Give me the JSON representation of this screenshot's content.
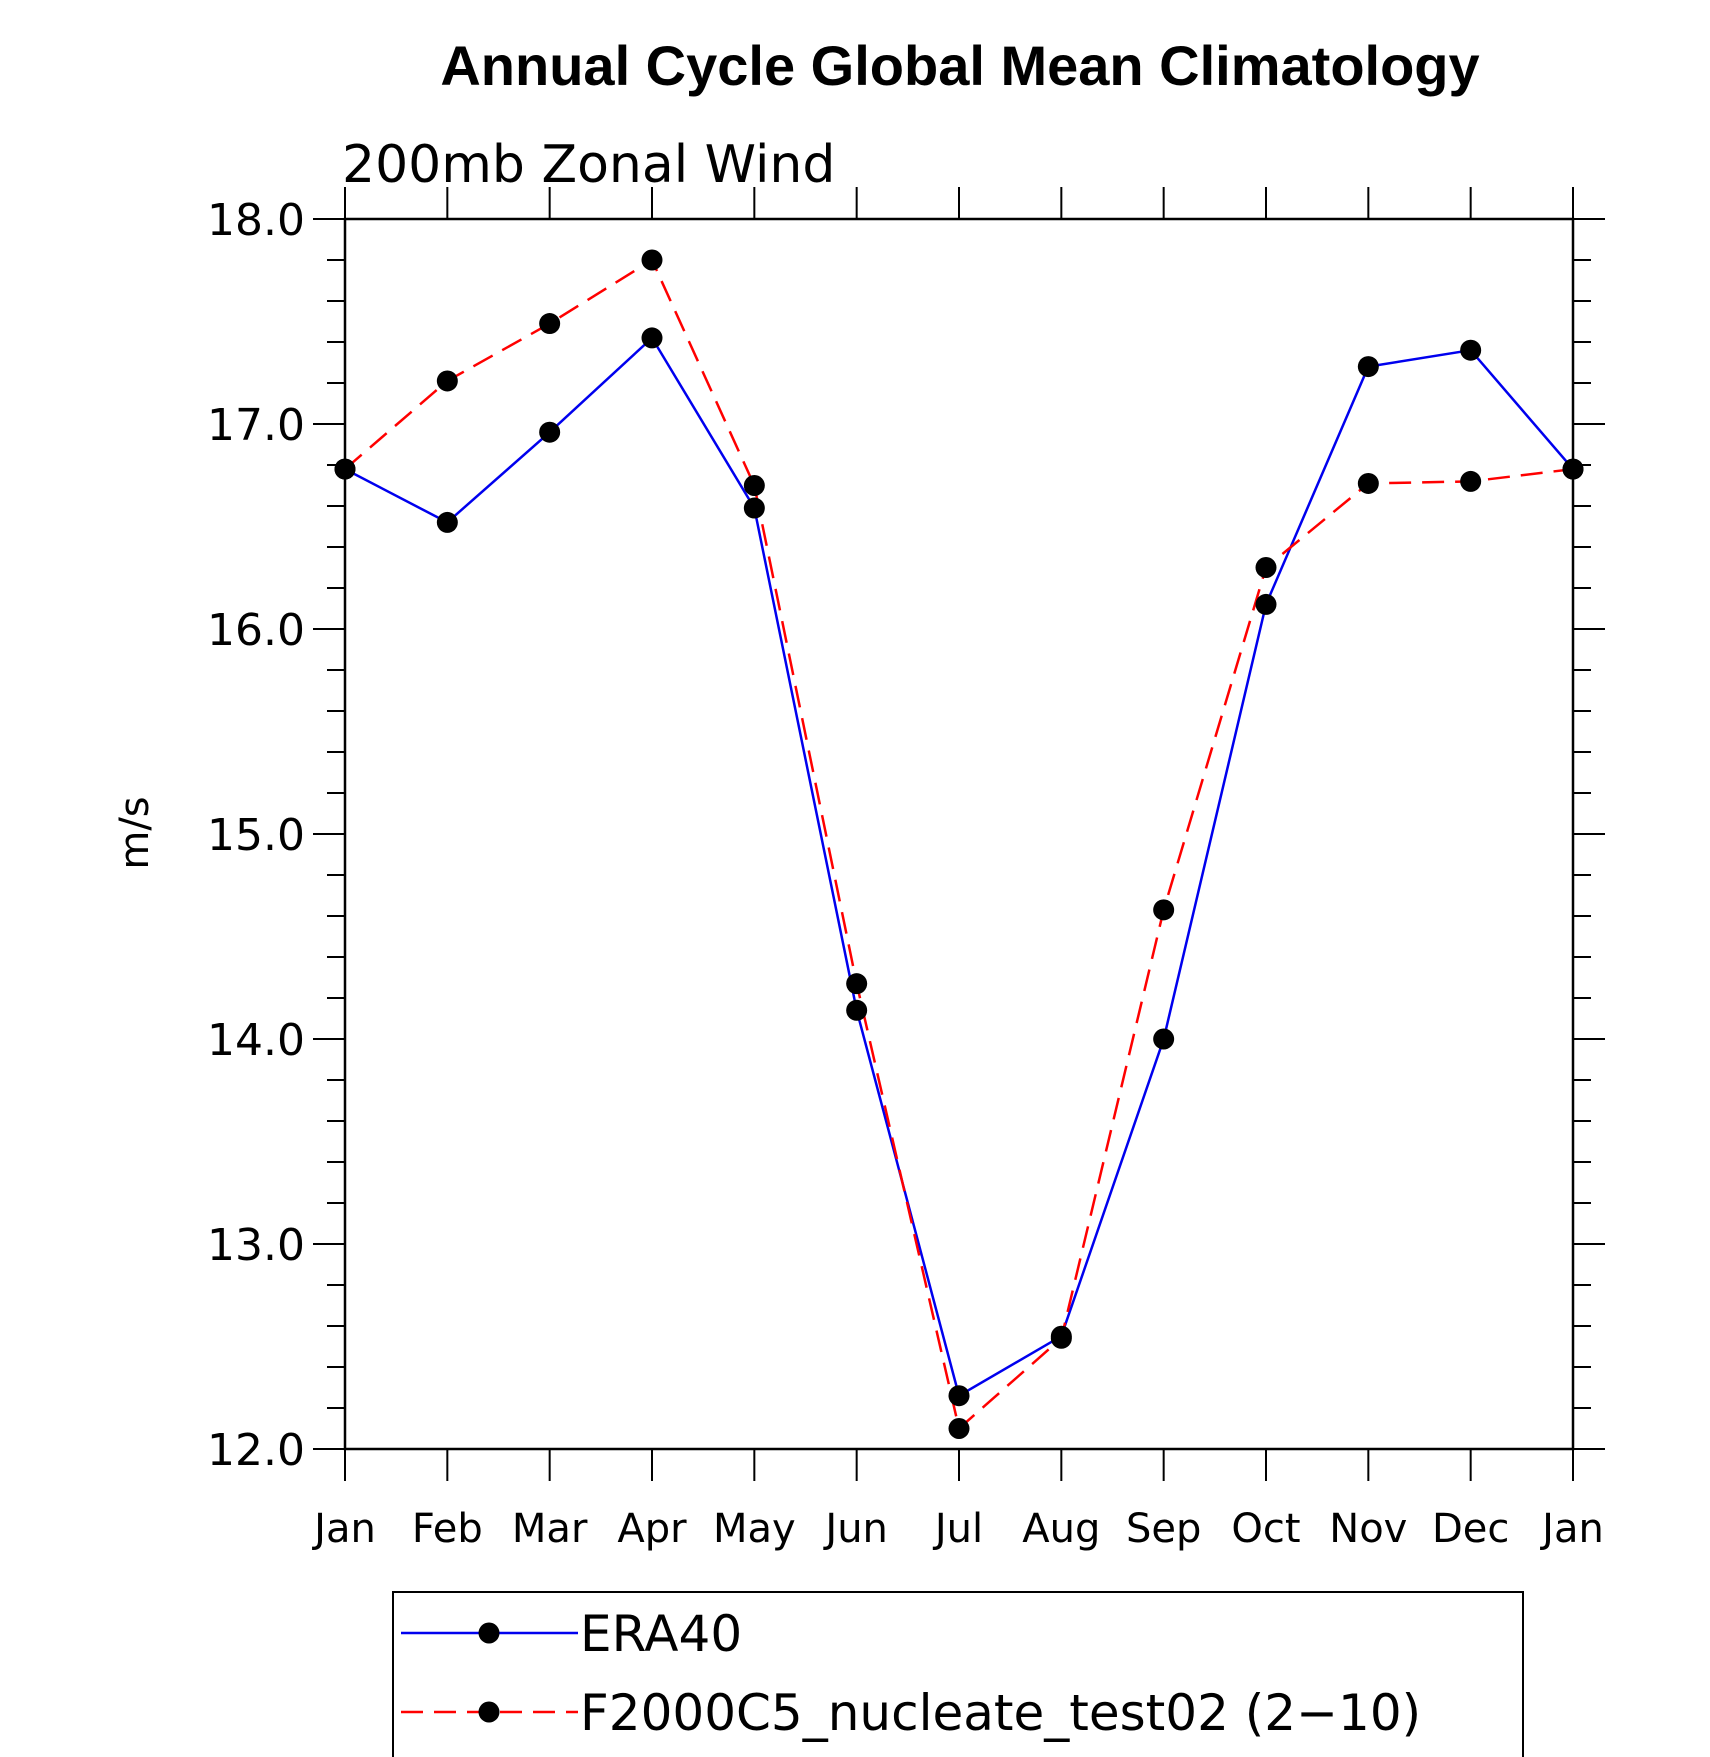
{
  "chart_data": {
    "type": "line",
    "title": "Annual Cycle Global Mean Climatology",
    "subtitle": "200mb Zonal Wind",
    "xlabel": "",
    "ylabel": "m/s",
    "categories": [
      "Jan",
      "Feb",
      "Mar",
      "Apr",
      "May",
      "Jun",
      "Jul",
      "Aug",
      "Sep",
      "Oct",
      "Nov",
      "Dec",
      "Jan"
    ],
    "ylim": [
      12.0,
      18.0
    ],
    "yticks": [
      12.0,
      13.0,
      14.0,
      15.0,
      16.0,
      17.0,
      18.0
    ],
    "ytick_labels": [
      "12.0",
      "13.0",
      "14.0",
      "15.0",
      "16.0",
      "17.0",
      "18.0"
    ],
    "minor_ytick_step": 0.2,
    "grid": false,
    "legend_position": "bottom",
    "series": [
      {
        "name": "ERA40",
        "color": "#0000ee",
        "style": "solid",
        "marker": "filled-circle",
        "values": [
          16.78,
          16.52,
          16.96,
          17.42,
          16.59,
          14.14,
          12.26,
          12.55,
          14.0,
          16.12,
          17.28,
          17.36,
          16.78
        ]
      },
      {
        "name": "F2000C5_nucleate_test02 (2−10)",
        "color": "#ff0000",
        "style": "dashed",
        "marker": "filled-circle",
        "values": [
          16.78,
          17.21,
          17.49,
          17.8,
          16.7,
          14.27,
          12.1,
          12.54,
          14.63,
          16.3,
          16.71,
          16.72,
          16.78
        ]
      }
    ]
  }
}
